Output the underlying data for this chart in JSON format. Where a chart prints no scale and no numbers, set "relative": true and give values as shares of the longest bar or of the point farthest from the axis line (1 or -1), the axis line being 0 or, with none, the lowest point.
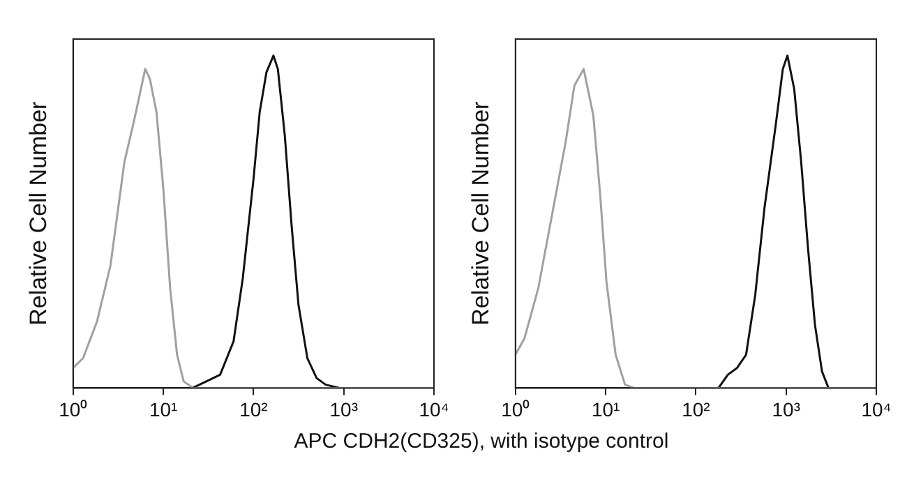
{
  "chart_data": [
    {
      "type": "line",
      "relative": true,
      "log": "x",
      "ylabel": "Relative Cell Number",
      "xlabel": "APC CDH2(CD325), with isotype control",
      "xlim": [
        1,
        10000
      ],
      "xticks": [
        {
          "value": 1,
          "label": "10⁰"
        },
        {
          "value": 10,
          "label": "10¹"
        },
        {
          "value": 100,
          "label": "10²"
        },
        {
          "value": 1000,
          "label": "10³"
        },
        {
          "value": 10000,
          "label": "10⁴"
        }
      ],
      "grid": false,
      "legend": false,
      "marker": "none",
      "series": [
        {
          "color": "#a0a0a0",
          "x": [
            1,
            1.29,
            1.84,
            2.6,
            3.7,
            4.7,
            6.3,
            7.1,
            8.4,
            10,
            11.9,
            14.2,
            16.8,
            21.4,
            10000
          ],
          "values": [
            0.06,
            0.09,
            0.2,
            0.37,
            0.68,
            0.8,
            0.96,
            0.93,
            0.83,
            0.6,
            0.3,
            0.1,
            0.02,
            0,
            0
          ]
        },
        {
          "color": "#111111",
          "x": [
            21,
            30,
            42.6,
            60,
            76,
            100,
            117,
            139,
            166,
            186,
            222,
            264,
            315,
            395,
            500,
            630,
            900,
            10000
          ],
          "values": [
            0,
            0.02,
            0.04,
            0.14,
            0.33,
            0.63,
            0.83,
            0.95,
            1,
            0.96,
            0.76,
            0.49,
            0.25,
            0.09,
            0.03,
            0.01,
            0,
            0
          ]
        }
      ]
    },
    {
      "type": "line",
      "relative": true,
      "log": "x",
      "ylabel": "Relative Cell Number",
      "xlim": [
        1,
        10000
      ],
      "xticks": [
        {
          "value": 1,
          "label": "10⁰"
        },
        {
          "value": 10,
          "label": "10¹"
        },
        {
          "value": 100,
          "label": "10²"
        },
        {
          "value": 1000,
          "label": "10³"
        },
        {
          "value": 10000,
          "label": "10⁴"
        }
      ],
      "grid": false,
      "legend": false,
      "marker": "none",
      "series": [
        {
          "color": "#a0a0a0",
          "x": [
            1,
            1.26,
            1.79,
            2.54,
            3.6,
            4.5,
            5.7,
            7.3,
            8.7,
            10.2,
            12.9,
            16.4,
            20.7,
            10000
          ],
          "values": [
            0.1,
            0.15,
            0.3,
            0.52,
            0.74,
            0.91,
            0.96,
            0.82,
            0.58,
            0.32,
            0.1,
            0.01,
            0,
            0
          ]
        },
        {
          "color": "#111111",
          "x": [
            178,
            226,
            285,
            360,
            455,
            575,
            775,
            920,
            1035,
            1230,
            1470,
            1750,
            2090,
            2500,
            2950,
            10000
          ],
          "values": [
            0,
            0.04,
            0.06,
            0.1,
            0.28,
            0.54,
            0.8,
            0.96,
            1,
            0.9,
            0.68,
            0.42,
            0.19,
            0.05,
            0,
            0
          ]
        }
      ]
    }
  ]
}
